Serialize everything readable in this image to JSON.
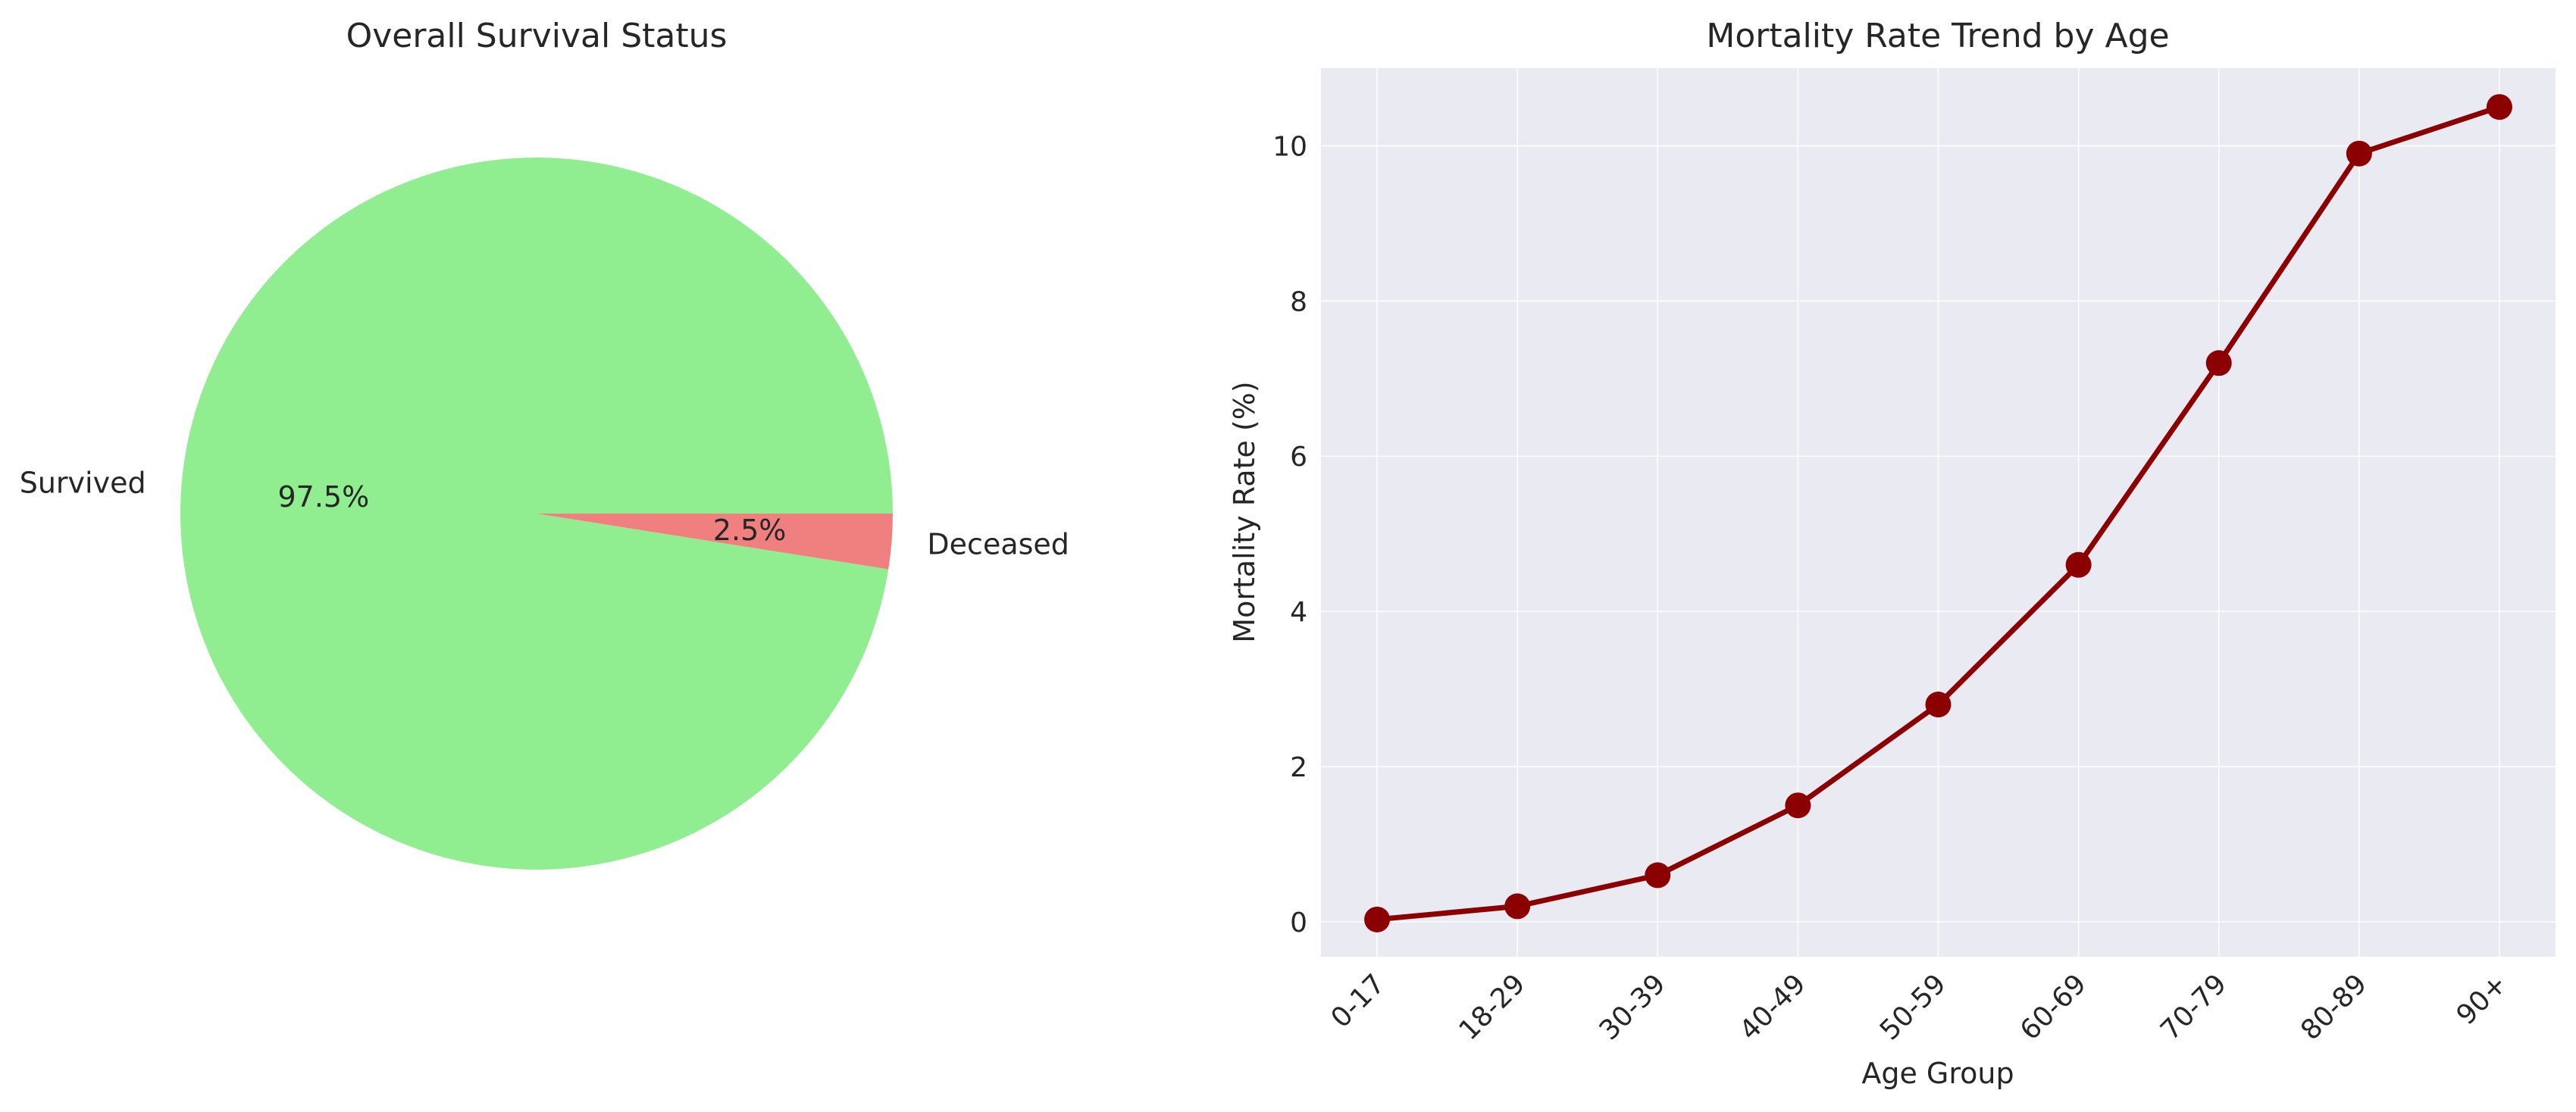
{
  "chart_data": [
    {
      "type": "pie",
      "title": "Overall Survival Status",
      "slices": [
        {
          "label": "Survived",
          "value": 97.5,
          "pct_label": "97.5%",
          "color": "#90ee90"
        },
        {
          "label": "Deceased",
          "value": 2.5,
          "pct_label": "2.5%",
          "color": "#f08080"
        }
      ]
    },
    {
      "type": "line",
      "title": "Mortality Rate Trend by Age",
      "xlabel": "Age Group",
      "ylabel": "Mortality Rate (%)",
      "categories": [
        "0-17",
        "18-29",
        "30-39",
        "40-49",
        "50-59",
        "60-69",
        "70-79",
        "80-89",
        "90+"
      ],
      "series": [
        {
          "values": [
            0.03,
            0.2,
            0.6,
            1.5,
            2.8,
            4.6,
            7.2,
            9.9,
            10.5
          ],
          "color": "#8b0000"
        }
      ],
      "ylim": [
        -0.45,
        11.0
      ],
      "yticks": [
        0,
        2,
        4,
        6,
        8,
        10
      ],
      "grid": true,
      "background": "#eaeaf2",
      "grid_color": "#ffffff"
    }
  ]
}
